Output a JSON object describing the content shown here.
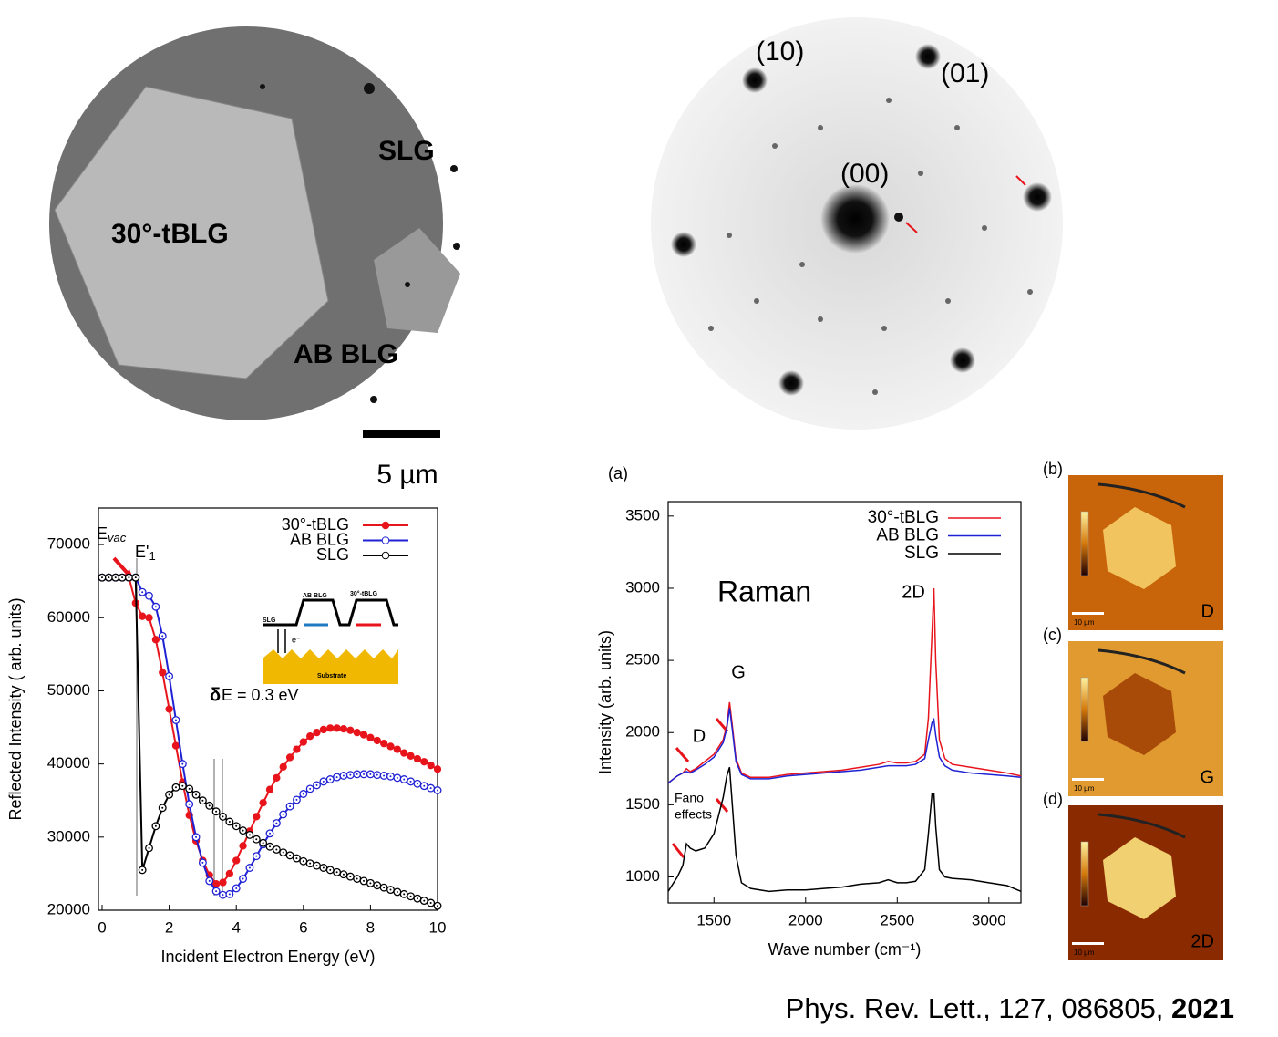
{
  "chart_data": [
    {
      "type": "line",
      "xlabel": "Incident Electron Energy (eV)",
      "ylabel": "Reflected Intensity ( arb. units)",
      "xlim": [
        0,
        10
      ],
      "ylim": [
        20000,
        75000
      ],
      "xticks": [
        0,
        2,
        4,
        6,
        8,
        10
      ],
      "yticks": [
        20000,
        30000,
        40000,
        50000,
        60000,
        70000
      ],
      "x": [
        0,
        0.2,
        0.4,
        0.6,
        0.8,
        1.0,
        1.2,
        1.4,
        1.6,
        1.8,
        2.0,
        2.2,
        2.4,
        2.6,
        2.8,
        3.0,
        3.2,
        3.4,
        3.6,
        3.8,
        4.0,
        4.2,
        4.4,
        4.6,
        4.8,
        5.0,
        5.2,
        5.4,
        5.6,
        5.8,
        6.0,
        6.2,
        6.4,
        6.6,
        6.8,
        7.0,
        7.2,
        7.4,
        7.6,
        7.8,
        8.0,
        8.2,
        8.4,
        8.6,
        8.8,
        9.0,
        9.2,
        9.4,
        9.6,
        9.8,
        10
      ],
      "series": [
        {
          "name": "30°-tBLG",
          "color": "#e8141c",
          "marker": "filled",
          "values": [
            65500,
            65500,
            65500,
            65500,
            65500,
            62000,
            60200,
            60000,
            57000,
            52500,
            47500,
            42500,
            37500,
            33000,
            29500,
            26800,
            24800,
            23600,
            23800,
            25000,
            26800,
            28800,
            30800,
            32800,
            34700,
            36500,
            38100,
            39600,
            40900,
            42000,
            43000,
            43800,
            44300,
            44700,
            44900,
            44900,
            44800,
            44600,
            44300,
            44000,
            43600,
            43200,
            42800,
            42400,
            42000,
            41500,
            41100,
            40700,
            40300,
            39800,
            39300
          ]
        },
        {
          "name": "AB BLG",
          "color": "#1f22d4",
          "marker": "open",
          "values": [
            65500,
            65500,
            65500,
            65500,
            65500,
            65500,
            63500,
            63000,
            61500,
            57500,
            52000,
            46000,
            40000,
            34500,
            30000,
            26500,
            24000,
            22600,
            22100,
            22200,
            23000,
            24300,
            25800,
            27400,
            29000,
            30500,
            31900,
            33100,
            34200,
            35100,
            35900,
            36600,
            37100,
            37600,
            37900,
            38200,
            38400,
            38500,
            38600,
            38600,
            38600,
            38500,
            38400,
            38300,
            38100,
            37900,
            37600,
            37300,
            37000,
            36700,
            36400
          ]
        },
        {
          "name": "SLG",
          "color": "#000000",
          "marker": "open",
          "values": [
            65500,
            65500,
            65500,
            65500,
            65500,
            65500,
            25500,
            28500,
            31500,
            34000,
            35800,
            36800,
            37000,
            36600,
            35800,
            35000,
            34300,
            33500,
            32800,
            32100,
            31500,
            30900,
            30300,
            29700,
            29200,
            28700,
            28300,
            27900,
            27500,
            27100,
            26700,
            26400,
            26100,
            25800,
            25500,
            25200,
            24900,
            24600,
            24300,
            24000,
            23700,
            23400,
            23100,
            22800,
            22500,
            22200,
            21900,
            21600,
            21300,
            21000,
            20600
          ]
        }
      ],
      "annotations": {
        "e_vac": {
          "main": "E",
          "sub": "vac"
        },
        "e1": {
          "main": "E'",
          "sub": "1"
        },
        "delta": "δ",
        "delta_rest": "E  = 0.3 eV",
        "inset": {
          "slg": "SLG",
          "ab": "AB BLG",
          "tw": "30°-tBLG",
          "sub": "Substrate",
          "e": "e⁻"
        }
      }
    },
    {
      "type": "line",
      "panel": "(a)",
      "xlabel": "Wave number (cm⁻¹)",
      "ylabel": "Intensity (arb. units)",
      "xlim": [
        1250,
        3175
      ],
      "ylim": [
        820,
        3600
      ],
      "xticks": [
        1500,
        2000,
        2500,
        3000
      ],
      "yticks": [
        1000,
        1500,
        2000,
        2500,
        3000,
        3500
      ],
      "x": [
        1250,
        1300,
        1330,
        1350,
        1370,
        1400,
        1450,
        1500,
        1550,
        1570,
        1585,
        1600,
        1620,
        1650,
        1700,
        1800,
        1900,
        2000,
        2100,
        2200,
        2300,
        2400,
        2450,
        2500,
        2550,
        2600,
        2650,
        2670,
        2690,
        2700,
        2710,
        2730,
        2760,
        2800,
        2900,
        3000,
        3100,
        3175
      ],
      "series": [
        {
          "name": "30°-tBLG",
          "color": "#e8141c",
          "values": [
            1650,
            1700,
            1720,
            1750,
            1730,
            1750,
            1800,
            1850,
            1950,
            2050,
            2210,
            2050,
            1820,
            1720,
            1690,
            1690,
            1710,
            1720,
            1730,
            1740,
            1760,
            1780,
            1800,
            1790,
            1790,
            1800,
            1850,
            2100,
            2700,
            3000,
            2500,
            1950,
            1820,
            1780,
            1760,
            1740,
            1720,
            1700
          ]
        },
        {
          "name": "AB BLG",
          "color": "#1f22d4",
          "values": [
            1650,
            1700,
            1720,
            1730,
            1720,
            1740,
            1780,
            1830,
            1930,
            2030,
            2170,
            2020,
            1800,
            1710,
            1680,
            1680,
            1700,
            1710,
            1720,
            1730,
            1740,
            1760,
            1770,
            1770,
            1770,
            1780,
            1820,
            1950,
            2070,
            2090,
            1980,
            1830,
            1770,
            1740,
            1720,
            1710,
            1700,
            1690
          ]
        },
        {
          "name": "SLG",
          "color": "#000000",
          "values": [
            900,
            1000,
            1080,
            1230,
            1200,
            1180,
            1200,
            1300,
            1550,
            1700,
            1760,
            1500,
            1150,
            960,
            920,
            900,
            910,
            910,
            920,
            930,
            950,
            960,
            980,
            960,
            960,
            970,
            1050,
            1300,
            1580,
            1580,
            1350,
            1050,
            1000,
            990,
            980,
            960,
            940,
            900
          ]
        }
      ],
      "annotations": {
        "raman": "Raman",
        "g": "G",
        "d": "D",
        "d2": "2D",
        "fano1": "Fano",
        "fano2": "effects"
      }
    }
  ],
  "leem": {
    "slg": "SLG",
    "tw": "30°-tBLG",
    "ab": "AB BLG",
    "scale": "5 µm"
  },
  "leed": {
    "s10": "(10)",
    "s01": "(01)",
    "s00": "(00)"
  },
  "maps": [
    {
      "panel": "(b)",
      "label": "D",
      "scale": "10 µm"
    },
    {
      "panel": "(c)",
      "label": "G",
      "scale": "10 µm"
    },
    {
      "panel": "(d)",
      "label": "2D",
      "scale": "10 µm"
    }
  ],
  "citation": {
    "text": "Phys. Rev. Lett., 127, 086805, ",
    "year": "2021"
  }
}
